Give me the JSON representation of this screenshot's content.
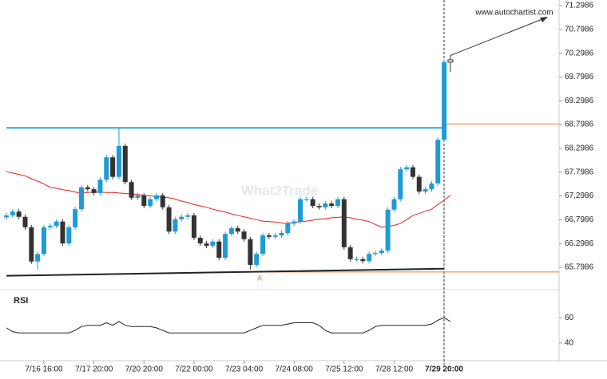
{
  "chart_data": {
    "type": "candlestick",
    "watermark": "What2Trade",
    "source": "www.autochartist.com",
    "pattern_label": "A",
    "up_color": "#1e9bd7",
    "down_color": "#333333",
    "categories": [
      null,
      null,
      null,
      null,
      null,
      null,
      "7/16 16:00",
      null,
      null,
      null,
      null,
      null,
      null,
      null,
      "7/17 20:00",
      null,
      null,
      null,
      null,
      null,
      null,
      null,
      "7/20 20:00",
      null,
      null,
      null,
      null,
      null,
      null,
      null,
      "7/22 00:00",
      null,
      null,
      null,
      null,
      null,
      null,
      null,
      "7/23 04:00",
      null,
      null,
      null,
      null,
      null,
      null,
      null,
      "7/24 08:00",
      null,
      null,
      null,
      null,
      null,
      null,
      null,
      "7/25 12:00",
      null,
      null,
      null,
      null,
      null,
      null,
      null,
      "7/28 12:00",
      null,
      null,
      null,
      null,
      null,
      null,
      null,
      "7/29 20:00",
      null
    ],
    "open": [
      66.85,
      66.89,
      66.97,
      66.86,
      66.64,
      65.92,
      66.08,
      66.64,
      66.67,
      66.76,
      66.3,
      66.64,
      67.02,
      67.48,
      67.44,
      67.36,
      67.64,
      68.11,
      67.7,
      68.35,
      67.59,
      67.26,
      67.31,
      67.09,
      67.23,
      67.31,
      67.06,
      66.55,
      66.81,
      66.86,
      66.89,
      66.42,
      66.3,
      66.25,
      66.34,
      66.0,
      66.5,
      66.62,
      66.55,
      66.39,
      65.85,
      66.08,
      66.47,
      66.44,
      66.47,
      66.52,
      66.72,
      66.76,
      67.23,
      67.23,
      67.09,
      67.06,
      67.14,
      67.09,
      67.23,
      66.22,
      65.97,
      65.97,
      65.93,
      66.08,
      66.1,
      66.15,
      67.01,
      67.23,
      67.86,
      67.9,
      67.7,
      67.39,
      67.44,
      67.56,
      68.48,
      70.11
    ],
    "high": [
      66.94,
      67.02,
      67.02,
      66.91,
      66.69,
      66.13,
      66.69,
      66.72,
      66.81,
      66.81,
      66.69,
      67.07,
      67.53,
      67.53,
      67.49,
      67.69,
      68.16,
      68.16,
      68.73,
      68.4,
      67.64,
      67.36,
      67.36,
      67.28,
      67.36,
      67.36,
      67.11,
      66.86,
      66.91,
      66.94,
      66.94,
      66.47,
      66.35,
      66.39,
      66.39,
      66.55,
      66.67,
      66.67,
      66.6,
      66.44,
      66.13,
      66.52,
      66.52,
      66.52,
      66.57,
      66.77,
      66.81,
      67.28,
      67.28,
      67.28,
      67.14,
      67.19,
      67.19,
      67.28,
      67.28,
      66.27,
      66.02,
      66.02,
      66.13,
      66.15,
      66.2,
      67.06,
      67.28,
      67.91,
      67.95,
      67.95,
      67.75,
      67.49,
      67.61,
      68.53,
      70.16,
      70.25
    ],
    "low": [
      66.8,
      66.84,
      66.81,
      66.59,
      65.87,
      65.75,
      66.03,
      66.59,
      66.62,
      66.25,
      66.25,
      66.59,
      66.97,
      67.39,
      67.31,
      67.31,
      67.59,
      67.65,
      67.65,
      67.54,
      67.21,
      67.21,
      67.04,
      67.04,
      67.18,
      67.01,
      66.5,
      66.5,
      66.76,
      66.81,
      66.37,
      66.25,
      66.2,
      66.2,
      65.95,
      65.95,
      66.45,
      66.5,
      66.34,
      65.75,
      65.8,
      66.03,
      66.39,
      66.39,
      66.42,
      66.47,
      66.67,
      66.71,
      67.18,
      67.04,
      67.01,
      67.01,
      67.04,
      67.04,
      66.17,
      65.92,
      65.92,
      65.88,
      65.88,
      66.03,
      66.05,
      66.1,
      66.96,
      67.18,
      67.81,
      67.65,
      67.34,
      67.34,
      67.39,
      67.51,
      68.43,
      69.9
    ],
    "close": [
      66.89,
      66.97,
      66.86,
      66.64,
      65.92,
      66.08,
      66.64,
      66.67,
      66.76,
      66.3,
      66.64,
      67.02,
      67.48,
      67.44,
      67.36,
      67.64,
      68.11,
      67.7,
      68.35,
      67.59,
      67.26,
      67.31,
      67.09,
      67.23,
      67.31,
      67.06,
      66.55,
      66.81,
      66.86,
      66.89,
      66.42,
      66.3,
      66.25,
      66.34,
      66.0,
      66.5,
      66.62,
      66.55,
      66.39,
      65.85,
      66.08,
      66.47,
      66.44,
      66.47,
      66.52,
      66.72,
      66.76,
      67.23,
      67.23,
      67.09,
      67.06,
      67.14,
      67.09,
      67.23,
      66.22,
      65.97,
      65.97,
      65.93,
      66.08,
      66.1,
      66.15,
      67.01,
      67.23,
      67.86,
      67.9,
      67.7,
      67.39,
      67.44,
      67.56,
      68.48,
      70.11,
      70.16
    ],
    "moving_average": {
      "color": "#e02020",
      "values": [
        67.81,
        67.78,
        67.75,
        67.72,
        67.66,
        67.61,
        67.55,
        67.48,
        67.46,
        67.43,
        67.41,
        67.38,
        67.36,
        67.37,
        67.38,
        67.38,
        67.37,
        67.37,
        67.36,
        67.35,
        67.34,
        67.33,
        67.31,
        67.3,
        67.29,
        67.27,
        67.26,
        67.23,
        67.19,
        67.16,
        67.12,
        67.09,
        67.06,
        67.02,
        66.99,
        66.96,
        66.92,
        66.89,
        66.86,
        66.83,
        66.8,
        66.77,
        66.76,
        66.75,
        66.73,
        66.72,
        66.74,
        66.76,
        66.77,
        66.79,
        66.81,
        66.82,
        66.84,
        66.85,
        66.86,
        66.84,
        66.81,
        66.79,
        66.76,
        66.7,
        66.64,
        66.66,
        66.68,
        66.72,
        66.8,
        66.89,
        66.93,
        66.98,
        67.02,
        67.12,
        67.21,
        67.31
      ]
    },
    "resistance": {
      "value": 68.73,
      "color": "#29a8e0"
    },
    "support_trend": {
      "values": [
        65.62,
        65.77
      ],
      "color": "#222222"
    },
    "forecast_levels": {
      "values": [
        68.81,
        65.7
      ],
      "color": "#f07830"
    },
    "ylim": [
      65.38,
      71.2986
    ],
    "yticks": [
      71.2986,
      70.7986,
      70.2986,
      69.7986,
      69.2986,
      68.7986,
      68.2986,
      67.7986,
      67.2986,
      66.7986,
      66.2986,
      65.7986
    ],
    "rsi": {
      "label": "RSI",
      "color": "#222222",
      "ylim": [
        26,
        81
      ],
      "yticks": [
        60,
        40
      ],
      "values": [
        52,
        49,
        48,
        48,
        48,
        48,
        48,
        48,
        48,
        48,
        48,
        50,
        53,
        54,
        54,
        54,
        56,
        54,
        57,
        54,
        53,
        53,
        53,
        53,
        52,
        50,
        48,
        48,
        48,
        48,
        48,
        48,
        48,
        48,
        48,
        48,
        48,
        48,
        48,
        50,
        52,
        54,
        54,
        54,
        54,
        55,
        56,
        56,
        56,
        56,
        54,
        50,
        48,
        48,
        48,
        48,
        48,
        48,
        50,
        53,
        54,
        54,
        54,
        54,
        54,
        54,
        54,
        54,
        55,
        58,
        60,
        57
      ]
    }
  }
}
